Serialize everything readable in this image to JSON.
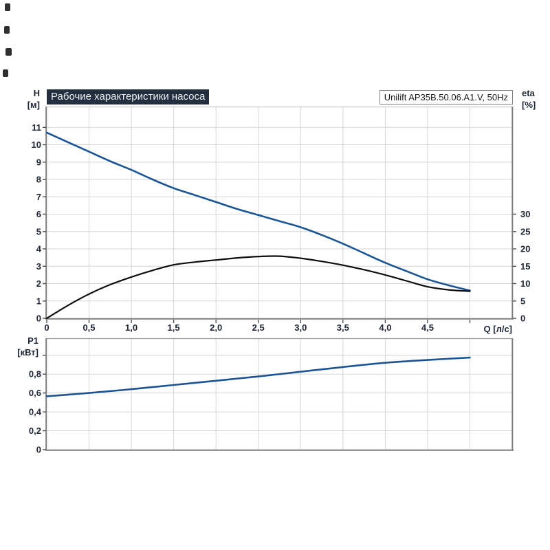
{
  "page": {
    "background": "#ffffff"
  },
  "header": {
    "title": "Рабочие характеристики насоса",
    "model": "Unilift AP35B.50.06.A1.V, 50Hz"
  },
  "colors": {
    "accent_blue": "#1a5494",
    "curve_black": "#0e0e0e",
    "titlebar_bg": "#232e3e",
    "titlebar_text": "#eef1f5",
    "grid": "#d5d5d5",
    "frame": "#7d7d7d",
    "frame_light": "#c9c9c9",
    "tick_text": "#1d2433",
    "tick_mark": "#4d4d4d"
  },
  "chart_data": [
    {
      "type": "line",
      "title": "Рабочие характеристики насоса",
      "model_label": "Unilift AP35B.50.06.A1.V, 50Hz",
      "grid": true,
      "x_axis": {
        "label": "Q [л/с]",
        "min": 0,
        "max": 5.5,
        "ticks": [
          0,
          0.5,
          1,
          1.5,
          2,
          2.5,
          3,
          3.5,
          4,
          4.5,
          5
        ],
        "tick_labels": [
          "0",
          "0,5",
          "1,0",
          "1,5",
          "2,0",
          "2,5",
          "3,0",
          "3,5",
          "4,0",
          "4,5",
          ""
        ]
      },
      "y_axis_left": {
        "label": "H",
        "unit": "[м]",
        "min": 0,
        "max": 12.2,
        "ticks": [
          0,
          1,
          2,
          3,
          4,
          5,
          6,
          7,
          8,
          9,
          10,
          11
        ],
        "tick_labels": [
          "0",
          "1",
          "2",
          "3",
          "4",
          "5",
          "6",
          "7",
          "8",
          "9",
          "10",
          "11"
        ]
      },
      "y_axis_right": {
        "label": "eta",
        "unit": "[%]",
        "min": 0,
        "max": 61,
        "ticks": [
          0,
          5,
          10,
          15,
          20,
          25,
          30
        ],
        "tick_labels": [
          "0",
          "5",
          "10",
          "15",
          "20",
          "25",
          "30"
        ]
      },
      "series": [
        {
          "name": "H",
          "axis": "left",
          "color_key": "accent_blue",
          "width": 2.6,
          "x": [
            0,
            0.25,
            0.5,
            0.75,
            1,
            1.25,
            1.5,
            1.75,
            2,
            2.25,
            2.5,
            2.75,
            3,
            3.25,
            3.5,
            3.75,
            4,
            4.25,
            4.5,
            4.75,
            5
          ],
          "y": [
            10.7,
            10.15,
            9.6,
            9.05,
            8.55,
            8.0,
            7.5,
            7.1,
            6.7,
            6.3,
            5.95,
            5.6,
            5.25,
            4.8,
            4.3,
            3.75,
            3.2,
            2.72,
            2.25,
            1.9,
            1.6
          ]
        },
        {
          "name": "eta",
          "axis": "right",
          "color_key": "curve_black",
          "width": 2.2,
          "x": [
            0,
            0.25,
            0.5,
            0.75,
            1,
            1.25,
            1.5,
            1.75,
            2,
            2.25,
            2.5,
            2.75,
            3,
            3.25,
            3.5,
            3.75,
            4,
            4.25,
            4.5,
            4.75,
            5
          ],
          "y": [
            0,
            3.7,
            7.0,
            9.7,
            11.9,
            13.8,
            15.4,
            16.2,
            16.8,
            17.4,
            17.8,
            17.9,
            17.3,
            16.4,
            15.3,
            14.0,
            12.5,
            10.8,
            9.1,
            8.2,
            7.8
          ]
        }
      ]
    },
    {
      "type": "line",
      "grid": true,
      "x_axis": {
        "label": "",
        "min": 0,
        "max": 5.5,
        "ticks": [],
        "tick_labels": []
      },
      "y_axis_left": {
        "label": "P1",
        "unit": "[кВт]",
        "min": 0,
        "max": 1.18,
        "ticks": [
          0,
          0.2,
          0.4,
          0.6,
          0.8,
          1.0
        ],
        "tick_labels": [
          "0",
          "0,2",
          "0,4",
          "0,6",
          "0,8",
          ""
        ]
      },
      "series": [
        {
          "name": "P1",
          "axis": "left",
          "color_key": "accent_blue",
          "width": 2.6,
          "x": [
            0,
            0.5,
            1,
            1.5,
            2,
            2.5,
            3,
            3.5,
            4,
            4.5,
            5
          ],
          "y": [
            0.565,
            0.6,
            0.64,
            0.685,
            0.73,
            0.775,
            0.825,
            0.875,
            0.92,
            0.95,
            0.975
          ]
        }
      ]
    }
  ]
}
